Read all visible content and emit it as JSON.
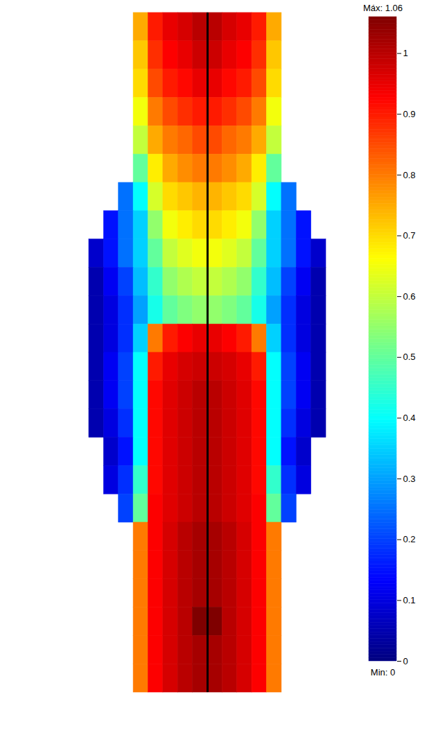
{
  "chart_data": {
    "type": "heatmap",
    "cells": [
      [
        null,
        null,
        null,
        0.75,
        0.9,
        0.95,
        0.97,
        1.0,
        1.0,
        0.97,
        0.95,
        0.9,
        0.75,
        null,
        null,
        null
      ],
      [
        null,
        null,
        null,
        0.72,
        0.88,
        0.93,
        0.95,
        0.98,
        0.98,
        0.95,
        0.93,
        0.88,
        0.72,
        null,
        null,
        null
      ],
      [
        null,
        null,
        null,
        0.7,
        0.85,
        0.9,
        0.92,
        0.95,
        0.95,
        0.92,
        0.9,
        0.85,
        0.7,
        null,
        null,
        null
      ],
      [
        null,
        null,
        null,
        0.65,
        0.8,
        0.85,
        0.88,
        0.9,
        0.9,
        0.88,
        0.85,
        0.8,
        0.65,
        null,
        null,
        null
      ],
      [
        null,
        null,
        null,
        0.6,
        0.75,
        0.8,
        0.82,
        0.85,
        0.85,
        0.82,
        0.8,
        0.75,
        0.6,
        null,
        null,
        null
      ],
      [
        null,
        null,
        null,
        0.5,
        0.68,
        0.75,
        0.78,
        0.8,
        0.8,
        0.78,
        0.75,
        0.68,
        0.5,
        null,
        null,
        null
      ],
      [
        null,
        null,
        0.25,
        0.4,
        0.62,
        0.7,
        0.72,
        0.74,
        0.74,
        0.72,
        0.7,
        0.62,
        0.4,
        0.25,
        null,
        null
      ],
      [
        null,
        0.15,
        0.25,
        0.35,
        0.55,
        0.65,
        0.68,
        0.7,
        0.7,
        0.68,
        0.65,
        0.55,
        0.35,
        0.25,
        0.15,
        null
      ],
      [
        0.08,
        0.15,
        0.25,
        0.35,
        0.5,
        0.6,
        0.63,
        0.65,
        0.65,
        0.63,
        0.6,
        0.5,
        0.35,
        0.25,
        0.15,
        0.08
      ],
      [
        0.05,
        0.12,
        0.2,
        0.33,
        0.45,
        0.55,
        0.58,
        0.6,
        0.6,
        0.58,
        0.55,
        0.45,
        0.33,
        0.2,
        0.12,
        0.05
      ],
      [
        0.05,
        0.1,
        0.18,
        0.3,
        0.42,
        0.5,
        0.53,
        0.55,
        0.55,
        0.53,
        0.5,
        0.42,
        0.3,
        0.18,
        0.1,
        0.05
      ],
      [
        0.05,
        0.1,
        0.18,
        0.35,
        0.8,
        0.9,
        0.93,
        0.95,
        0.95,
        0.93,
        0.9,
        0.8,
        0.35,
        0.18,
        0.1,
        0.05
      ],
      [
        0.05,
        0.12,
        0.2,
        0.4,
        0.9,
        0.95,
        0.97,
        0.98,
        0.98,
        0.97,
        0.95,
        0.9,
        0.4,
        0.2,
        0.12,
        0.05
      ],
      [
        0.05,
        0.12,
        0.2,
        0.4,
        0.92,
        0.96,
        0.98,
        1.0,
        1.0,
        0.98,
        0.96,
        0.92,
        0.4,
        0.2,
        0.12,
        0.05
      ],
      [
        0.05,
        0.1,
        0.18,
        0.4,
        0.92,
        0.96,
        0.98,
        1.0,
        1.0,
        0.98,
        0.96,
        0.92,
        0.4,
        0.18,
        0.1,
        0.05
      ],
      [
        null,
        0.08,
        0.15,
        0.4,
        0.92,
        0.96,
        0.98,
        1.0,
        1.0,
        0.98,
        0.96,
        0.92,
        0.4,
        0.15,
        0.08,
        null
      ],
      [
        null,
        0.1,
        0.18,
        0.45,
        0.92,
        0.96,
        0.98,
        1.0,
        1.0,
        0.98,
        0.96,
        0.92,
        0.45,
        0.18,
        0.1,
        null
      ],
      [
        null,
        null,
        0.2,
        0.5,
        0.93,
        0.96,
        0.98,
        1.0,
        1.0,
        0.98,
        0.96,
        0.93,
        0.5,
        0.2,
        null,
        null
      ],
      [
        null,
        null,
        null,
        0.8,
        0.93,
        0.97,
        1.0,
        1.02,
        1.02,
        1.0,
        0.97,
        0.93,
        0.8,
        null,
        null,
        null
      ],
      [
        null,
        null,
        null,
        0.8,
        0.93,
        0.97,
        1.0,
        1.02,
        1.02,
        1.0,
        0.97,
        0.93,
        0.8,
        null,
        null,
        null
      ],
      [
        null,
        null,
        null,
        0.8,
        0.93,
        0.97,
        1.0,
        1.02,
        1.02,
        1.0,
        0.97,
        0.93,
        0.8,
        null,
        null,
        null
      ],
      [
        null,
        null,
        null,
        0.8,
        0.93,
        0.97,
        1.0,
        1.06,
        1.06,
        1.0,
        0.97,
        0.93,
        0.8,
        null,
        null,
        null
      ],
      [
        null,
        null,
        null,
        0.8,
        0.93,
        0.97,
        1.0,
        1.02,
        1.02,
        1.0,
        0.97,
        0.93,
        0.8,
        null,
        null,
        null
      ],
      [
        null,
        null,
        null,
        0.8,
        0.93,
        0.97,
        1.0,
        1.02,
        1.02,
        1.0,
        0.97,
        0.93,
        0.8,
        null,
        null,
        null
      ]
    ],
    "colorbar": {
      "range": [
        0,
        1.06
      ],
      "ticks": [
        0,
        0.1,
        0.2,
        0.3,
        0.4,
        0.5,
        0.6,
        0.7,
        0.8,
        0.9,
        1
      ],
      "max": {
        "value": 1.06,
        "label": "Máx: 1.06"
      },
      "min": {
        "value": 0,
        "label": "Min: 0"
      }
    }
  }
}
